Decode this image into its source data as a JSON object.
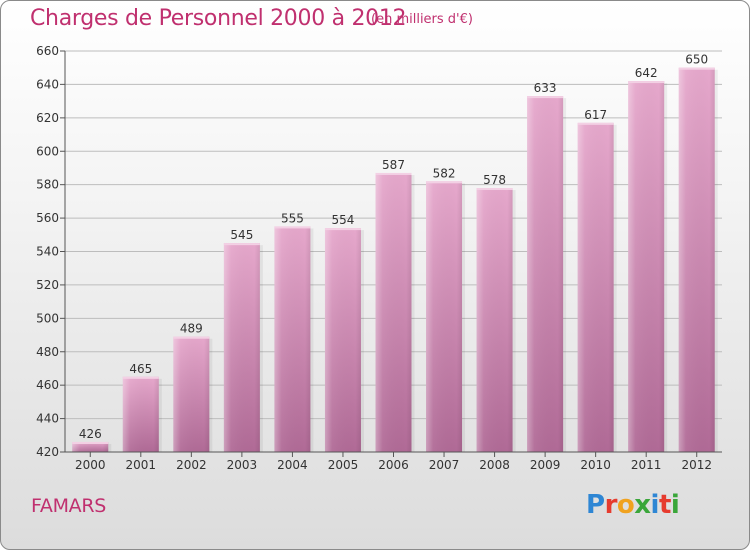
{
  "header": {
    "title": "Charges de Personnel 2000 à 2012",
    "subtitle": "(en milliers d'€)"
  },
  "footer": {
    "city": "FAMARS",
    "brand": "Proxiti",
    "brand_letters": [
      {
        "ch": "P",
        "color": "#2e86d4"
      },
      {
        "ch": "r",
        "color": "#e63b2e"
      },
      {
        "ch": "o",
        "color": "#f0a21f"
      },
      {
        "ch": "x",
        "color": "#3aa63a"
      },
      {
        "ch": "i",
        "color": "#2e86d4"
      },
      {
        "ch": "t",
        "color": "#e63b2e"
      },
      {
        "ch": "i",
        "color": "#3aa63a"
      }
    ]
  },
  "colors": {
    "accent": "#c0306f",
    "bar_top": "#e6a8cc",
    "bar_bottom": "#b06a96",
    "grid": "#bdbdbd"
  },
  "chart_data": {
    "type": "bar",
    "title": "Charges de Personnel 2000 à 2012",
    "subtitle": "(en milliers d'€)",
    "categories": [
      "2000",
      "2001",
      "2002",
      "2003",
      "2004",
      "2005",
      "2006",
      "2007",
      "2008",
      "2009",
      "2010",
      "2011",
      "2012"
    ],
    "values": [
      426,
      465,
      489,
      545,
      555,
      554,
      587,
      582,
      578,
      633,
      617,
      642,
      650
    ],
    "ylim": [
      420,
      660
    ],
    "yticks": [
      420,
      440,
      460,
      480,
      500,
      520,
      540,
      560,
      580,
      600,
      620,
      640,
      660
    ],
    "grid": true,
    "legend": "none"
  }
}
